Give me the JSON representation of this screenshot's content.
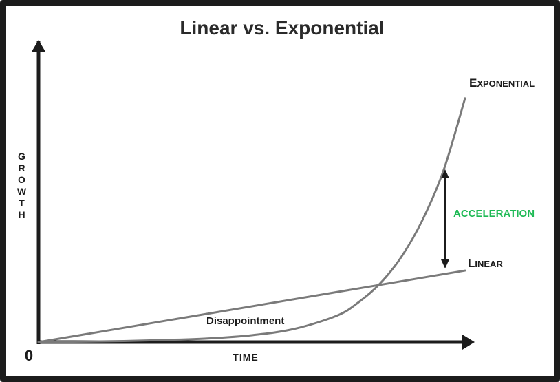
{
  "chart_data": {
    "type": "line",
    "title": "Linear vs. Exponential",
    "xlabel": "TIME",
    "ylabel": "GROWTH",
    "origin_label": "0",
    "grid": false,
    "legend": "none",
    "xlim": [
      0,
      1
    ],
    "ylim": [
      0,
      1
    ],
    "series": [
      {
        "name": "Linear",
        "color": "#7a7a7a",
        "x": [
          0,
          1
        ],
        "y": [
          0,
          0.27
        ]
      },
      {
        "name": "Exponential",
        "color": "#7a7a7a",
        "x": [
          0,
          0.1,
          0.2,
          0.3,
          0.4,
          0.5,
          0.6,
          0.7,
          0.75,
          0.8,
          0.85,
          0.9,
          0.95,
          1.0
        ],
        "y": [
          0,
          0.0015,
          0.004,
          0.008,
          0.014,
          0.026,
          0.05,
          0.1,
          0.15,
          0.22,
          0.32,
          0.46,
          0.65,
          0.92
        ]
      }
    ],
    "annotations": [
      {
        "text": "ACCELERATION",
        "color": "#1db954"
      },
      {
        "text": "Disappointment"
      }
    ]
  }
}
